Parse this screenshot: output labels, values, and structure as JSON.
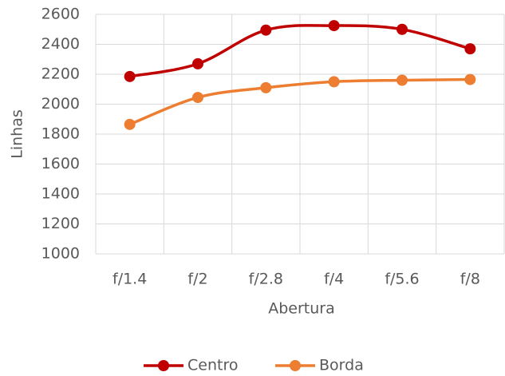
{
  "chart_data": {
    "type": "line",
    "x_label": "Abertura",
    "y_label": "Linhas",
    "categories": [
      "f/1.4",
      "f/2",
      "f/2.8",
      "f/4",
      "f/5.6",
      "f/8"
    ],
    "series": [
      {
        "name": "Centro",
        "color": "#c00000",
        "values": [
          2185,
          2270,
          2495,
          2525,
          2500,
          2370
        ]
      },
      {
        "name": "Borda",
        "color": "#ed7d31",
        "values": [
          1865,
          2045,
          2110,
          2150,
          2160,
          2165
        ]
      }
    ],
    "ylim": [
      1000,
      2600
    ],
    "yticks": [
      1000,
      1200,
      1400,
      1600,
      1800,
      2000,
      2200,
      2400,
      2600
    ],
    "grid": true,
    "legend": "bottom",
    "smooth": true
  }
}
